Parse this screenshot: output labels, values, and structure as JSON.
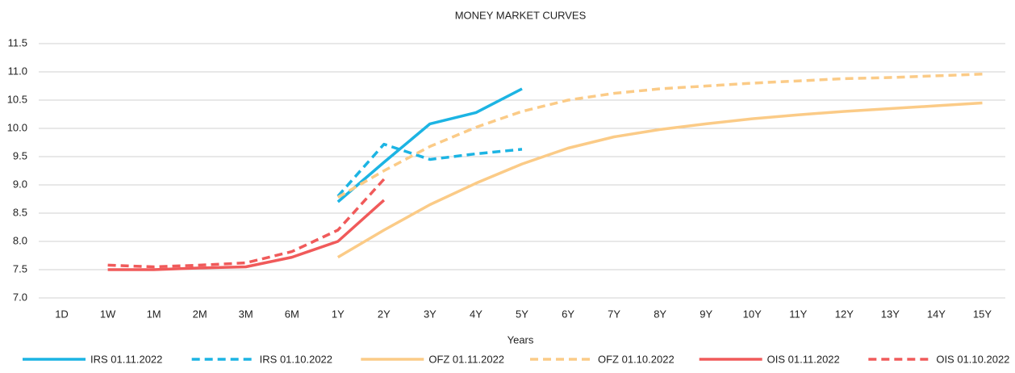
{
  "chart_data": {
    "type": "line",
    "title": "MONEY MARKET CURVES",
    "xlabel": "Years",
    "categories": [
      "1D",
      "1W",
      "1M",
      "2M",
      "3M",
      "6M",
      "1Y",
      "2Y",
      "3Y",
      "4Y",
      "5Y",
      "6Y",
      "7Y",
      "8Y",
      "9Y",
      "10Y",
      "11Y",
      "12Y",
      "13Y",
      "14Y",
      "15Y"
    ],
    "ylim": [
      7,
      11.5
    ],
    "yticks": [
      {
        "value": 7,
        "label": "7.0"
      },
      7.5,
      {
        "value": 8,
        "label": "8.0"
      },
      8.5,
      {
        "value": 9,
        "label": "9.0"
      },
      9.5,
      {
        "value": 10,
        "label": "10.0"
      },
      10.5,
      {
        "value": 11,
        "label": "11.0"
      },
      11.5
    ],
    "grid": true,
    "legend": "bottom",
    "series": [
      {
        "name": "IRS 01.11.2022",
        "color": "#1cb4e3",
        "dash": false,
        "values": [
          null,
          null,
          null,
          null,
          null,
          null,
          8.7,
          9.4,
          10.08,
          10.28,
          10.7,
          null,
          null,
          null,
          null,
          null,
          null,
          null,
          null,
          null,
          null
        ]
      },
      {
        "name": "IRS 01.10.2022",
        "color": "#1cb4e3",
        "dash": true,
        "values": [
          null,
          null,
          null,
          null,
          null,
          null,
          8.8,
          9.72,
          9.45,
          9.55,
          9.63,
          null,
          null,
          null,
          null,
          null,
          null,
          null,
          null,
          null,
          null
        ]
      },
      {
        "name": "OFZ 01.11.2022",
        "color": "#fbcb87",
        "dash": false,
        "values": [
          null,
          null,
          null,
          null,
          null,
          null,
          7.72,
          8.2,
          8.65,
          9.03,
          9.37,
          9.65,
          9.85,
          9.98,
          10.08,
          10.17,
          10.24,
          10.3,
          10.35,
          10.4,
          10.45
        ]
      },
      {
        "name": "OFZ 01.10.2022",
        "color": "#fbcb87",
        "dash": true,
        "values": [
          null,
          null,
          null,
          null,
          null,
          null,
          8.78,
          9.25,
          9.68,
          10.02,
          10.3,
          10.5,
          10.62,
          10.7,
          10.75,
          10.8,
          10.84,
          10.88,
          10.9,
          10.93,
          10.96
        ]
      },
      {
        "name": "OIS 01.11.2022",
        "color": "#f05a5a",
        "dash": false,
        "values": [
          null,
          7.5,
          7.5,
          7.53,
          7.55,
          7.72,
          8.0,
          8.73,
          null,
          null,
          null,
          null,
          null,
          null,
          null,
          null,
          null,
          null,
          null,
          null,
          null
        ]
      },
      {
        "name": "OIS 01.10.2022",
        "color": "#f05a5a",
        "dash": true,
        "values": [
          null,
          7.58,
          7.55,
          7.58,
          7.62,
          7.82,
          8.2,
          9.1,
          null,
          null,
          null,
          null,
          null,
          null,
          null,
          null,
          null,
          null,
          null,
          null,
          null
        ]
      }
    ]
  }
}
